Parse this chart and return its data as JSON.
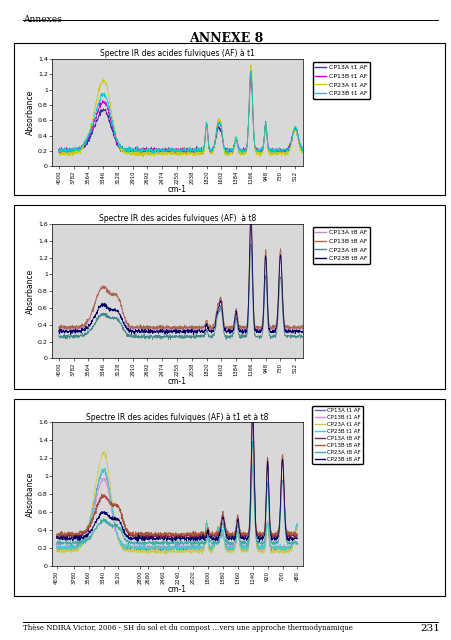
{
  "title_header": "ANNEXE 8",
  "header_label": "Annexes",
  "footer_text": "Thèse NDIRA Victor, 2006 - SH du sol et du compost …vers une approche thermodynamique",
  "footer_page": "231",
  "subplot1_title": "Spectre IR des acides fulviques (AF) à t1",
  "subplot2_title": "Spectre IR des acides fulviques (AF)  à t8",
  "subplot3_title": "Spectre IR des acides fulviques (AF) à t1 et à t8",
  "xlabel": "cm-1",
  "ylabel": "Absorbance",
  "xtick_labels1": [
    "4000",
    "3782",
    "3564",
    "3346",
    "3128",
    "2910",
    "2692",
    "2474",
    "2255",
    "2038",
    "1820",
    "1602",
    "1384",
    "1166",
    "948",
    "730",
    "512"
  ],
  "xtick_vals1": [
    4000,
    3782,
    3564,
    3346,
    3128,
    2910,
    2692,
    2474,
    2255,
    2038,
    1820,
    1602,
    1384,
    1166,
    948,
    730,
    512
  ],
  "xtick_labels3": [
    "4030",
    "3780",
    "3560",
    "3340",
    "3120",
    "2800",
    "2680",
    "2460",
    "2240",
    "2020",
    "1800",
    "1580",
    "1360",
    "1140",
    "920",
    "700",
    "480"
  ],
  "xtick_vals3": [
    4030,
    3780,
    3560,
    3340,
    3120,
    2800,
    2680,
    2460,
    2240,
    2020,
    1800,
    1580,
    1360,
    1140,
    920,
    700,
    480
  ],
  "subplot1_ylim": [
    0,
    1.4
  ],
  "subplot2_ylim": [
    0,
    1.6
  ],
  "subplot3_ylim": [
    0,
    1.6
  ],
  "legend1": [
    "CP13A t1 AF",
    "CP13B t1 AF",
    "CP23A t1 AF",
    "CP23B t1 AF"
  ],
  "legend1_colors": [
    "#3333AA",
    "#CC00CC",
    "#CCCC00",
    "#00CCCC"
  ],
  "legend2": [
    "CP13A t8 AF",
    "CP13B t8 AF",
    "CP23A t8 AF",
    "CP23B t8 AF"
  ],
  "legend2_colors": [
    "#CC88CC",
    "#AA6644",
    "#448888",
    "#000066"
  ],
  "legend3_t1": [
    "CP13A t1 AF",
    "CP13B t1 AF",
    "CP23A t1 AF",
    "CP23B t1 AF"
  ],
  "legend3_t1_colors": [
    "#6666BB",
    "#DD88DD",
    "#CCCC44",
    "#44CCCC"
  ],
  "legend3_t8": [
    "CP13A t8 AF",
    "CP13B t8 AF",
    "CP23A t8 AF",
    "CP23B t8 AF"
  ],
  "legend3_t8_colors": [
    "#882244",
    "#AA5533",
    "#44AAAA",
    "#000066"
  ]
}
